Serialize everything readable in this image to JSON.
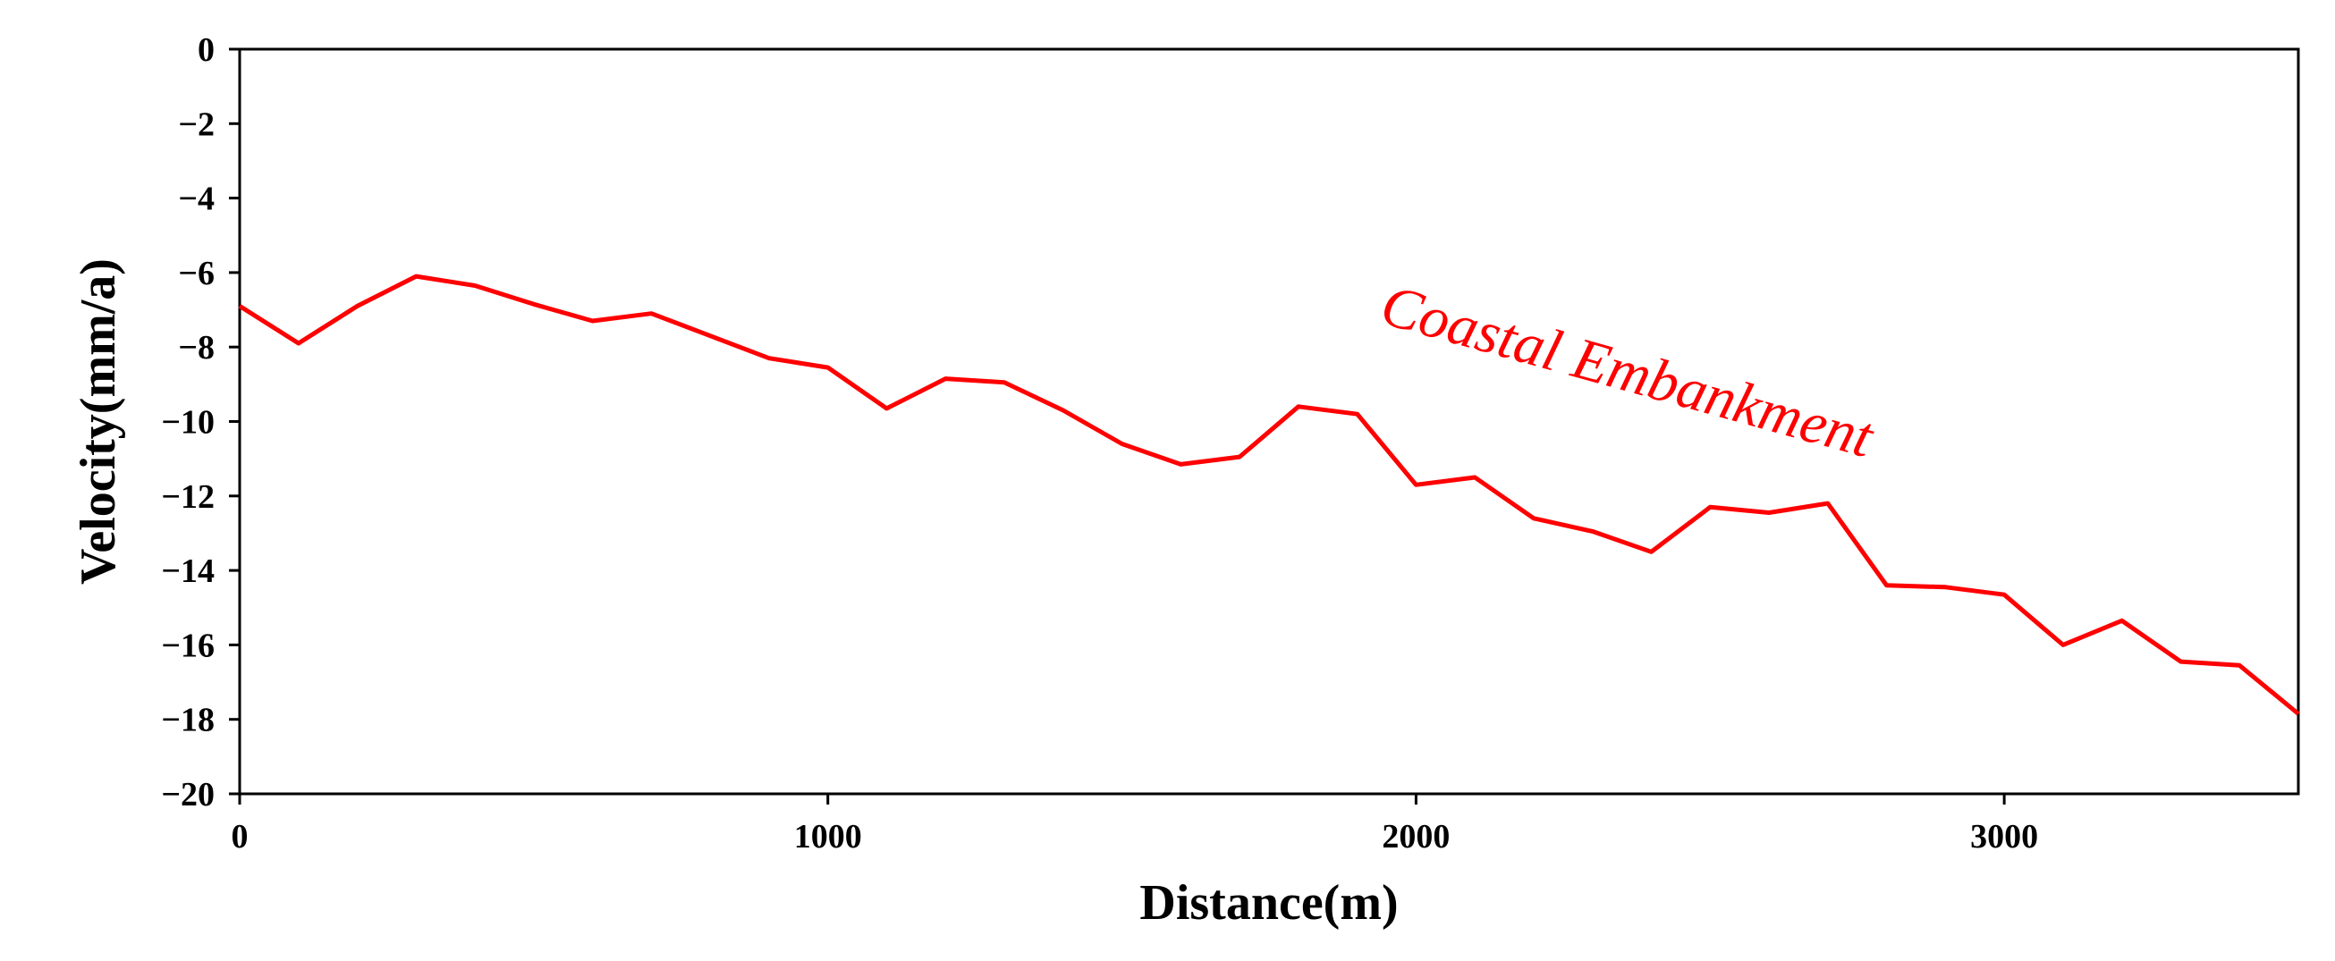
{
  "chart_data": {
    "type": "line",
    "title": "",
    "xlabel": "Distance(m)",
    "ylabel": "Velocity(mm/a)",
    "xlim": [
      0,
      3500
    ],
    "ylim": [
      -20,
      0
    ],
    "xticks": [
      0,
      1000,
      2000,
      3000
    ],
    "xtick_labels": [
      "0",
      "1000",
      "2000",
      "3000"
    ],
    "yticks": [
      0,
      -2,
      -4,
      -6,
      -8,
      -10,
      -12,
      -14,
      -16,
      -18,
      -20
    ],
    "ytick_labels": [
      "0",
      "−2",
      "−4",
      "−6",
      "−8",
      "−10",
      "−12",
      "−14",
      "−16",
      "−18",
      "−20"
    ],
    "grid": false,
    "series": [
      {
        "name": "Coastal Embankment",
        "color": "#ff0000",
        "x": [
          0,
          100,
          200,
          300,
          400,
          500,
          600,
          700,
          800,
          900,
          1000,
          1100,
          1200,
          1300,
          1400,
          1500,
          1600,
          1700,
          1800,
          1900,
          2000,
          2100,
          2200,
          2300,
          2400,
          2500,
          2600,
          2700,
          2800,
          2900,
          3000,
          3100,
          3200,
          3300,
          3400,
          3500
        ],
        "y": [
          -6.9,
          -7.9,
          -6.9,
          -6.1,
          -6.35,
          -6.85,
          -7.3,
          -7.1,
          -7.7,
          -8.3,
          -8.55,
          -9.65,
          -8.85,
          -8.95,
          -9.7,
          -10.6,
          -11.15,
          -10.95,
          -9.6,
          -9.8,
          -11.7,
          -11.5,
          -12.6,
          -12.95,
          -13.5,
          -12.3,
          -12.45,
          -12.2,
          -14.4,
          -14.45,
          -14.65,
          -16.0,
          -15.35,
          -16.45,
          -16.55,
          -17.85
        ]
      }
    ],
    "annotations": [
      {
        "text": "Coastal Embankment",
        "x": 2350,
        "y": -9.15,
        "rotation_deg": 15.5,
        "color": "#ff0000"
      }
    ]
  }
}
